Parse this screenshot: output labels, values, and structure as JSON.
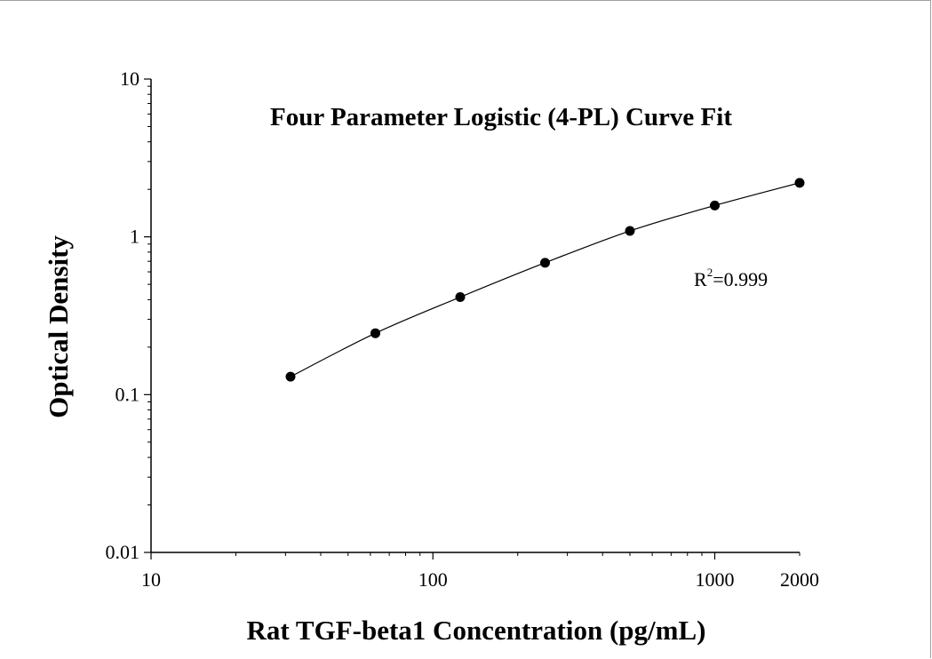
{
  "chart_data": {
    "type": "scatter",
    "title": "Four Parameter Logistic (4-PL) Curve Fit",
    "xlabel": "Rat TGF-beta1 Concentration (pg/mL)",
    "ylabel": "Optical Density",
    "xscale": "log",
    "yscale": "log",
    "xlim": [
      10,
      2000
    ],
    "ylim": [
      0.01,
      10
    ],
    "x_ticks": [
      "10",
      "100",
      "1000",
      "2000"
    ],
    "y_ticks": [
      "0.01",
      "0.1",
      "1",
      "10"
    ],
    "grid": false,
    "legend": "none",
    "series": [
      {
        "x": [
          31.25,
          62.5,
          125,
          250,
          500,
          1000,
          2000
        ],
        "y": [
          0.13,
          0.245,
          0.415,
          0.685,
          1.09,
          1.58,
          2.2
        ],
        "marker": "filled-circle",
        "fit_line": true
      }
    ],
    "annotation": {
      "base": "R",
      "sup": "2",
      "value": "=0.999"
    },
    "colors": {
      "marker": "#000000",
      "line": "#000000"
    }
  }
}
